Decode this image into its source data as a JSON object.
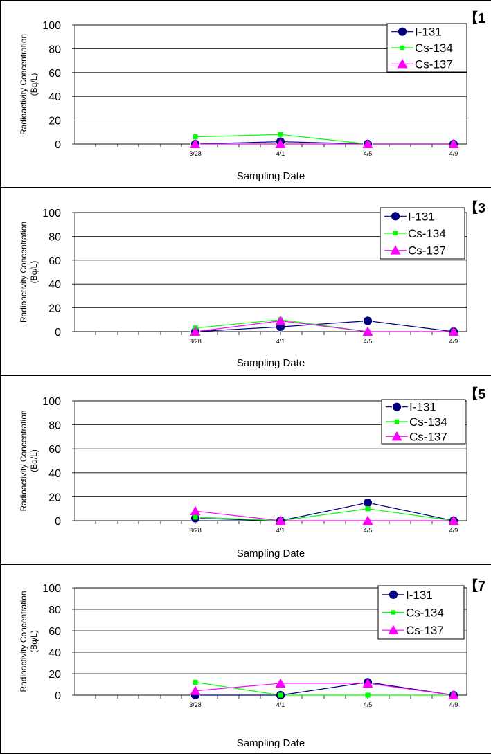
{
  "chart_data": [
    {
      "type": "line",
      "tag": "【1",
      "xlabel": "Sampling Date",
      "ylabel": "Radioactivity Concentration",
      "ylabel_unit": "(Bq/L)",
      "ylim": [
        0,
        100
      ],
      "yticks": [
        0,
        20,
        40,
        60,
        80,
        100
      ],
      "categories": [
        "3/28",
        "4/1",
        "4/5",
        "4/9"
      ],
      "legend_position": "top-right",
      "series": [
        {
          "name": "I-131",
          "color": "#000080",
          "marker": "circle",
          "values": [
            0,
            2,
            0,
            0
          ]
        },
        {
          "name": "Cs-134",
          "color": "#00ff00",
          "marker": "square",
          "values": [
            6,
            8,
            0,
            0
          ]
        },
        {
          "name": "Cs-137",
          "color": "#ff00ff",
          "marker": "triangle",
          "values": [
            0,
            0,
            0,
            0
          ]
        }
      ]
    },
    {
      "type": "line",
      "tag": "【3",
      "xlabel": "Sampling Date",
      "ylabel": "Radioactivity Concentration",
      "ylabel_unit": "(Bq/L)",
      "ylim": [
        0,
        100
      ],
      "yticks": [
        0,
        20,
        40,
        60,
        80,
        100
      ],
      "categories": [
        "3/28",
        "4/1",
        "4/5",
        "4/9"
      ],
      "legend_position": "top-right",
      "series": [
        {
          "name": "I-131",
          "color": "#000080",
          "marker": "circle",
          "values": [
            0,
            4,
            9,
            0
          ]
        },
        {
          "name": "Cs-134",
          "color": "#00ff00",
          "marker": "square",
          "values": [
            3,
            10,
            0,
            0
          ]
        },
        {
          "name": "Cs-137",
          "color": "#ff00ff",
          "marker": "triangle",
          "values": [
            0,
            9,
            0,
            0
          ]
        }
      ]
    },
    {
      "type": "line",
      "tag": "【5",
      "xlabel": "Sampling Date",
      "ylabel": "Radioactivity Concentration",
      "ylabel_unit": "(Bq/L)",
      "ylim": [
        0,
        100
      ],
      "yticks": [
        0,
        20,
        40,
        60,
        80,
        100
      ],
      "categories": [
        "3/28",
        "4/1",
        "4/5",
        "4/9"
      ],
      "legend_position": "top-right",
      "series": [
        {
          "name": "I-131",
          "color": "#000080",
          "marker": "circle",
          "values": [
            2,
            0,
            15,
            0
          ]
        },
        {
          "name": "Cs-134",
          "color": "#00ff00",
          "marker": "square",
          "values": [
            3,
            0,
            10,
            0
          ]
        },
        {
          "name": "Cs-137",
          "color": "#ff00ff",
          "marker": "triangle",
          "values": [
            8,
            0,
            0,
            0
          ]
        }
      ]
    },
    {
      "type": "line",
      "tag": "【7",
      "xlabel": "Sampling Date",
      "ylabel": "Radioactivity Concentration",
      "ylabel_unit": "(Bq/L)",
      "ylim": [
        0,
        100
      ],
      "yticks": [
        0,
        20,
        40,
        60,
        80,
        100
      ],
      "categories": [
        "3/28",
        "4/1",
        "4/5",
        "4/9"
      ],
      "legend_position": "top-right",
      "series": [
        {
          "name": "I-131",
          "color": "#000080",
          "marker": "circle",
          "values": [
            0,
            0,
            12,
            0
          ]
        },
        {
          "name": "Cs-134",
          "color": "#00ff00",
          "marker": "square",
          "values": [
            12,
            0,
            0,
            0
          ]
        },
        {
          "name": "Cs-137",
          "color": "#ff00ff",
          "marker": "triangle",
          "values": [
            4,
            11,
            11,
            0
          ]
        }
      ]
    }
  ]
}
